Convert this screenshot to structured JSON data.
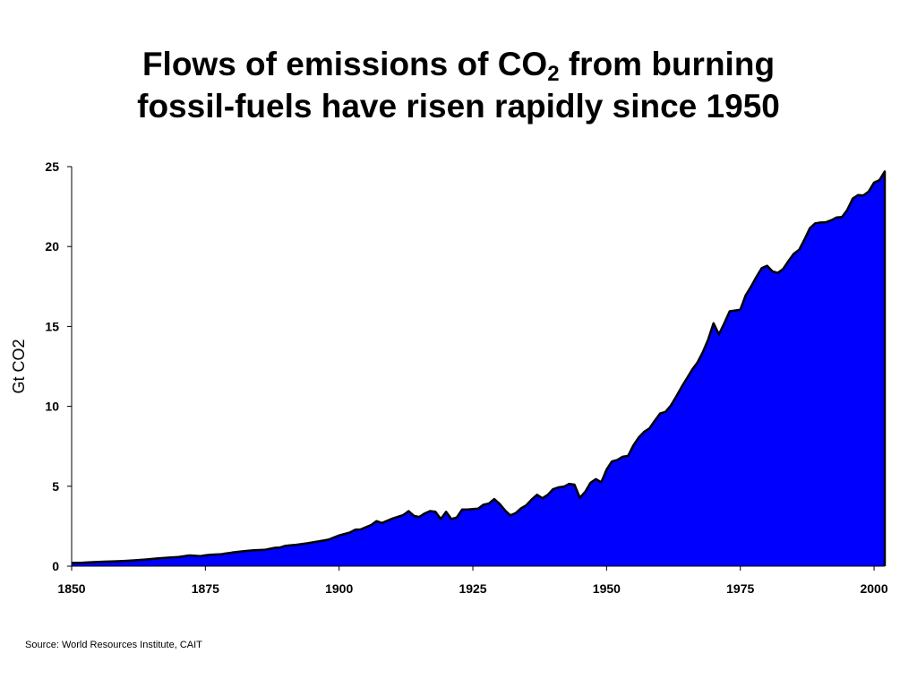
{
  "title": {
    "line1_before_sub": "Flows of emissions of CO",
    "line1_sub": "2",
    "line1_after_sub": " from burning",
    "line2": "fossil-fuels have risen rapidly since 1950"
  },
  "source": "Source: World Resources Institute, CAIT",
  "chart_data": {
    "type": "area",
    "title": "Flows of emissions of CO2 from burning fossil-fuels have risen rapidly since 1950",
    "xlabel": "",
    "ylabel": "Gt CO2",
    "xlim": [
      1850,
      2002
    ],
    "ylim": [
      0,
      25
    ],
    "xticks": [
      "1850",
      "1875",
      "1900",
      "1925",
      "1950",
      "1975",
      "2000"
    ],
    "yticks": [
      "0",
      "5",
      "10",
      "15",
      "20",
      "25"
    ],
    "grid": false,
    "legend": "none",
    "fill_color": "#0000FF",
    "line_color": "#000000",
    "x": [
      1850,
      1852,
      1854,
      1856,
      1858,
      1860,
      1862,
      1864,
      1866,
      1868,
      1870,
      1872,
      1874,
      1875,
      1876,
      1878,
      1880,
      1882,
      1884,
      1886,
      1888,
      1889,
      1890,
      1892,
      1894,
      1896,
      1898,
      1900,
      1902,
      1903,
      1904,
      1906,
      1907,
      1908,
      1910,
      1912,
      1913,
      1914,
      1915,
      1916,
      1917,
      1918,
      1919,
      1920,
      1921,
      1922,
      1923,
      1924,
      1926,
      1927,
      1928,
      1929,
      1930,
      1931,
      1932,
      1933,
      1934,
      1935,
      1936,
      1937,
      1938,
      1939,
      1940,
      1941,
      1942,
      1943,
      1944,
      1945,
      1946,
      1947,
      1948,
      1949,
      1950,
      1951,
      1952,
      1953,
      1954,
      1955,
      1956,
      1957,
      1958,
      1959,
      1960,
      1961,
      1962,
      1963,
      1964,
      1965,
      1966,
      1967,
      1968,
      1969,
      1970,
      1971,
      1972,
      1973,
      1974,
      1975,
      1976,
      1977,
      1978,
      1979,
      1980,
      1981,
      1982,
      1983,
      1984,
      1985,
      1986,
      1987,
      1988,
      1989,
      1990,
      1991,
      1992,
      1993,
      1994,
      1995,
      1996,
      1997,
      1998,
      1999,
      2000,
      2001,
      2002
    ],
    "values": [
      0.2,
      0.22,
      0.25,
      0.28,
      0.3,
      0.33,
      0.37,
      0.42,
      0.48,
      0.53,
      0.58,
      0.67,
      0.63,
      0.68,
      0.72,
      0.75,
      0.85,
      0.93,
      1.0,
      1.02,
      1.15,
      1.17,
      1.28,
      1.34,
      1.43,
      1.54,
      1.66,
      1.92,
      2.1,
      2.28,
      2.3,
      2.58,
      2.82,
      2.7,
      2.98,
      3.2,
      3.45,
      3.15,
      3.08,
      3.3,
      3.45,
      3.4,
      2.95,
      3.4,
      2.95,
      3.05,
      3.55,
      3.55,
      3.6,
      3.85,
      3.92,
      4.2,
      3.9,
      3.5,
      3.18,
      3.32,
      3.62,
      3.82,
      4.17,
      4.47,
      4.25,
      4.47,
      4.82,
      4.93,
      4.97,
      5.15,
      5.1,
      4.28,
      4.65,
      5.22,
      5.45,
      5.25,
      6.05,
      6.55,
      6.65,
      6.85,
      6.9,
      7.55,
      8.05,
      8.4,
      8.62,
      9.1,
      9.55,
      9.65,
      10.05,
      10.6,
      11.2,
      11.75,
      12.3,
      12.75,
      13.4,
      14.2,
      15.2,
      14.5,
      15.2,
      15.95,
      16.0,
      16.05,
      16.95,
      17.5,
      18.1,
      18.65,
      18.8,
      18.45,
      18.35,
      18.6,
      19.1,
      19.55,
      19.8,
      20.45,
      21.15,
      21.45,
      21.5,
      21.52,
      21.65,
      21.82,
      21.85,
      22.3,
      23.0,
      23.22,
      23.2,
      23.45,
      24.0,
      24.15,
      24.7
    ]
  }
}
